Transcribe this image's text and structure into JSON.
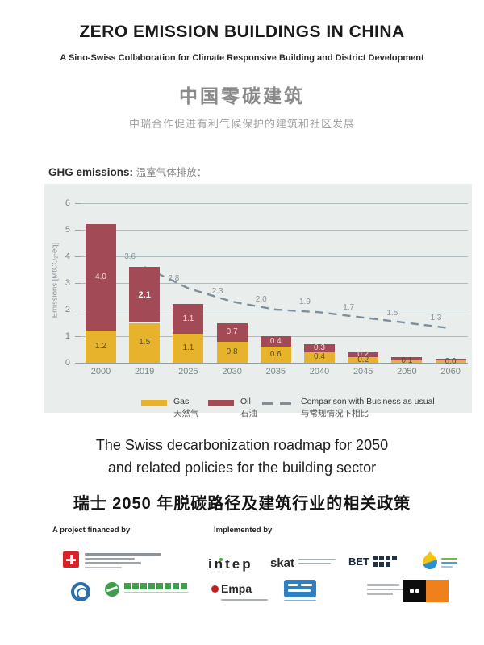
{
  "header": {
    "title": "ZERO EMISSION BUILDINGS IN CHINA",
    "subtitle_en": "A Sino-Swiss Collaboration for Climate Responsive Building and District Development",
    "title_zh": "中国零碳建筑",
    "subtitle_zh": "中瑞合作促进有利气候保护的建筑和社区发展"
  },
  "chart_section": {
    "label_en": "GHG emissions:",
    "label_zh": "温室气体排放："
  },
  "chart_data": {
    "type": "bar",
    "stacked": true,
    "title": "GHG emissions 温室气体排放",
    "categories": [
      "2000",
      "2019",
      "2025",
      "2030",
      "2035",
      "2040",
      "2045",
      "2050",
      "2060"
    ],
    "series": [
      {
        "name": "Gas",
        "name_zh": "天然气",
        "color": "#e8b32c",
        "values": [
          1.2,
          1.5,
          1.1,
          0.8,
          0.6,
          0.4,
          0.2,
          0.1,
          0.0
        ],
        "labels": [
          "1.2",
          "1.5",
          "1.1",
          "0.8",
          "0.6",
          "0.4",
          "0.2",
          "0.1",
          "0.0"
        ]
      },
      {
        "name": "Oil",
        "name_zh": "石油",
        "color": "#a24b57",
        "values": [
          4.0,
          2.1,
          1.1,
          0.7,
          0.4,
          0.3,
          0.2,
          0.1,
          0.0
        ],
        "labels": [
          "4.0",
          "2.1",
          "1.1",
          "0.7",
          "0.4",
          "0.3",
          "0.2",
          "",
          ""
        ]
      }
    ],
    "line_series": {
      "name": "Comparison with Business as usual",
      "name_zh": "与常规情况下相比",
      "color": "#7e8f9c",
      "values": [
        null,
        3.6,
        2.8,
        2.3,
        2.0,
        1.9,
        1.7,
        1.5,
        1.3
      ],
      "labels": [
        "",
        "3.6",
        "2.8",
        "2.3",
        "2.0",
        "1.9",
        "1.7",
        "1.5",
        "1.3"
      ]
    },
    "ylabel": "Emissions [MtCO₂-eq]",
    "ylim": [
      0,
      6
    ],
    "yticks": [
      0,
      1,
      2,
      3,
      4,
      5,
      6
    ],
    "grid": true,
    "legend_position": "bottom",
    "background": "#e9edec"
  },
  "mid_text": {
    "road_line1": "The Swiss decarbonization roadmap for 2050",
    "road_line2": "and related policies for the building sector",
    "road_zh": "瑞士 2050 年脱碳路径及建筑行业的相关政策"
  },
  "footer": {
    "financed_by_label": "A project financed by",
    "implemented_by_label": "Implemented by",
    "logo_texts": {
      "intep": "intep",
      "skat": "skat",
      "bet": "BET",
      "empa": "Empa"
    }
  }
}
